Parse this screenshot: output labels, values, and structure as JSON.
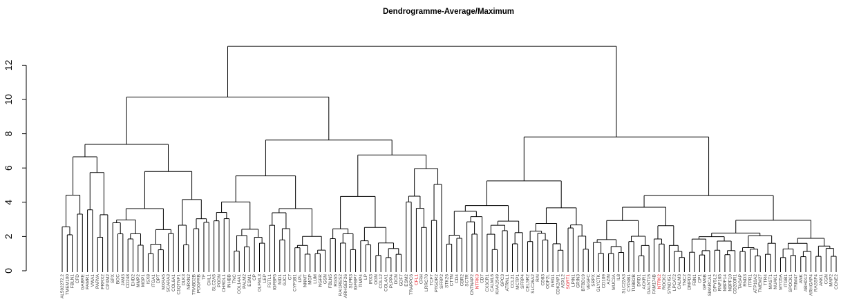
{
  "chart_data": {
    "type": "dendrogram",
    "title": "Dendrogramme-Average/Maximum",
    "xlabel": "",
    "ylabel": "",
    "ylim": [
      0,
      13.1
    ],
    "yticks": [
      0,
      2,
      4,
      6,
      8,
      10,
      12
    ],
    "grid": false,
    "highlight_color": "#e8202a",
    "label_color": "#444444",
    "root_height": 13.1,
    "leaves": [
      {
        "label": "AL592272.2",
        "highlight": false
      },
      {
        "label": "TMEM100",
        "highlight": false
      },
      {
        "label": "FBLN1",
        "highlight": false
      },
      {
        "label": "CFD",
        "highlight": false
      },
      {
        "label": "GABRE",
        "highlight": false
      },
      {
        "label": "PAMR1",
        "highlight": false
      },
      {
        "label": "VWA1",
        "highlight": false
      },
      {
        "label": "PARVA",
        "highlight": false
      },
      {
        "label": "PRRX2",
        "highlight": false
      },
      {
        "label": "CPXM2",
        "highlight": false
      },
      {
        "label": "SPX",
        "highlight": false
      },
      {
        "label": "BOC",
        "highlight": false
      },
      {
        "label": "JAM3",
        "highlight": false
      },
      {
        "label": "CD248",
        "highlight": false
      },
      {
        "label": "EHD2",
        "highlight": false
      },
      {
        "label": "MMP2",
        "highlight": false
      },
      {
        "label": "MGP1",
        "highlight": false
      },
      {
        "label": "ISX8",
        "highlight": false
      },
      {
        "label": "ITGA1",
        "highlight": false
      },
      {
        "label": "DPT",
        "highlight": false
      },
      {
        "label": "MXRA5",
        "highlight": false
      },
      {
        "label": "SCARA3",
        "highlight": false
      },
      {
        "label": "COL6A1",
        "highlight": false
      },
      {
        "label": "C1QTNF1",
        "highlight": false
      },
      {
        "label": "DLK3",
        "highlight": false
      },
      {
        "label": "NRXN2",
        "highlight": false
      },
      {
        "label": "TRABD2B",
        "highlight": false
      },
      {
        "label": "PDGFRB",
        "highlight": false
      },
      {
        "label": "TF",
        "highlight": false
      },
      {
        "label": "CHL1",
        "highlight": false
      },
      {
        "label": "SLC2A5",
        "highlight": false
      },
      {
        "label": "PODN",
        "highlight": false
      },
      {
        "label": "CHRDL1",
        "highlight": false
      },
      {
        "label": "INHBB",
        "highlight": false
      },
      {
        "label": "TNC",
        "highlight": false
      },
      {
        "label": "COL14A1",
        "highlight": false
      },
      {
        "label": "PALM2",
        "highlight": false
      },
      {
        "label": "ESM1",
        "highlight": false
      },
      {
        "label": "CP",
        "highlight": false
      },
      {
        "label": "OLFML3",
        "highlight": false
      },
      {
        "label": "LEP",
        "highlight": false
      },
      {
        "label": "FSTL1",
        "highlight": false
      },
      {
        "label": "IGFBP5",
        "highlight": false
      },
      {
        "label": "NID1",
        "highlight": false
      },
      {
        "label": "GJC1",
        "highlight": false
      },
      {
        "label": "C7",
        "highlight": false
      },
      {
        "label": "CYP1B1",
        "highlight": false
      },
      {
        "label": "LPL",
        "highlight": false
      },
      {
        "label": "NNMT",
        "highlight": false
      },
      {
        "label": "MGP",
        "highlight": false
      },
      {
        "label": "LUM",
        "highlight": false
      },
      {
        "label": "NGFR",
        "highlight": false
      },
      {
        "label": "GSN",
        "highlight": false
      },
      {
        "label": "FBLN5",
        "highlight": false
      },
      {
        "label": "RGS5",
        "highlight": false
      },
      {
        "label": "RAI1RES2",
        "highlight": false
      },
      {
        "label": "ARHGEF26",
        "highlight": false
      },
      {
        "label": "S1PR3",
        "highlight": false
      },
      {
        "label": "IGFBP7",
        "highlight": false
      },
      {
        "label": "TIMP4",
        "highlight": false
      },
      {
        "label": "LP",
        "highlight": false
      },
      {
        "label": "IRX3",
        "highlight": false
      },
      {
        "label": "OGN",
        "highlight": false
      },
      {
        "label": "COL12",
        "highlight": false
      },
      {
        "label": "COL4A1",
        "highlight": false
      },
      {
        "label": "PLPP4",
        "highlight": false
      },
      {
        "label": "DCN",
        "highlight": false
      },
      {
        "label": "GDF7",
        "highlight": false
      },
      {
        "label": "ESM2",
        "highlight": false
      },
      {
        "label": "TRAPPC6",
        "highlight": false
      },
      {
        "label": "CFL1",
        "highlight": true
      },
      {
        "label": "CRH",
        "highlight": false
      },
      {
        "label": "LRRC70",
        "highlight": false
      },
      {
        "label": "TCF7",
        "highlight": false
      },
      {
        "label": "PTGDR2",
        "highlight": false
      },
      {
        "label": "SFRP2",
        "highlight": false
      },
      {
        "label": "STK26",
        "highlight": false
      },
      {
        "label": "CTTN",
        "highlight": false
      },
      {
        "label": "CD4",
        "highlight": false
      },
      {
        "label": "CBR2",
        "highlight": false
      },
      {
        "label": "SCTR",
        "highlight": false
      },
      {
        "label": "CNTNAP2",
        "highlight": false
      },
      {
        "label": "NTRK3",
        "highlight": true
      },
      {
        "label": "CD7",
        "highlight": false
      },
      {
        "label": "CX3CR1",
        "highlight": false
      },
      {
        "label": "CALML6",
        "highlight": false
      },
      {
        "label": "KIAA1549",
        "highlight": false
      },
      {
        "label": "GPC3",
        "highlight": false
      },
      {
        "label": "ATRNL1",
        "highlight": false
      },
      {
        "label": "CCL21",
        "highlight": false
      },
      {
        "label": "MCTP1",
        "highlight": false
      },
      {
        "label": "SFRP4",
        "highlight": false
      },
      {
        "label": "CELSR2",
        "highlight": false
      },
      {
        "label": "SLC26A2",
        "highlight": false
      },
      {
        "label": "RAI",
        "highlight": false
      },
      {
        "label": "CD83",
        "highlight": false
      },
      {
        "label": "ODF2L",
        "highlight": false
      },
      {
        "label": "NRG1",
        "highlight": false
      },
      {
        "label": "CDK2AP1",
        "highlight": false
      },
      {
        "label": "ASXL2",
        "highlight": false
      },
      {
        "label": "SORT1",
        "highlight": true
      },
      {
        "label": "LPIN1",
        "highlight": false
      },
      {
        "label": "GRIN3",
        "highlight": false
      },
      {
        "label": "BTBD19",
        "highlight": false
      },
      {
        "label": "VEGFC",
        "highlight": false
      },
      {
        "label": "SRPX",
        "highlight": false
      },
      {
        "label": "GLYCTK",
        "highlight": false
      },
      {
        "label": "CD109",
        "highlight": false
      },
      {
        "label": "AZIN",
        "highlight": false
      },
      {
        "label": "MUC3A",
        "highlight": false
      },
      {
        "label": "IL8",
        "highlight": false
      },
      {
        "label": "SLC22A3",
        "highlight": false
      },
      {
        "label": "CYP4B1",
        "highlight": false
      },
      {
        "label": "TUBB2B",
        "highlight": false
      },
      {
        "label": "DRD1",
        "highlight": false
      },
      {
        "label": "ACKR1",
        "highlight": false
      },
      {
        "label": "GALNT15",
        "highlight": false
      },
      {
        "label": "FAM174B",
        "highlight": false
      },
      {
        "label": "NTRK2",
        "highlight": true
      },
      {
        "label": "ROCK2",
        "highlight": false
      },
      {
        "label": "SYNDIG1",
        "highlight": false
      },
      {
        "label": "LPCAT2",
        "highlight": false
      },
      {
        "label": "CALM3",
        "highlight": false
      },
      {
        "label": "TNC2",
        "highlight": false
      },
      {
        "label": "DMPD3",
        "highlight": false
      },
      {
        "label": "FBN1",
        "highlight": false
      },
      {
        "label": "CP1",
        "highlight": false
      },
      {
        "label": "GPM6B",
        "highlight": false
      },
      {
        "label": "SMARCA1",
        "highlight": false
      },
      {
        "label": "DPYSL2",
        "highlight": false
      },
      {
        "label": "RNF165",
        "highlight": false
      },
      {
        "label": "NBPF14",
        "highlight": false
      },
      {
        "label": "NBPF10",
        "highlight": false
      },
      {
        "label": "CD200R1",
        "highlight": false
      },
      {
        "label": "TAGAP",
        "highlight": false
      },
      {
        "label": "RND3",
        "highlight": false
      },
      {
        "label": "ITPR1",
        "highlight": false
      },
      {
        "label": "ATP10A2",
        "highlight": false
      },
      {
        "label": "TMEM27",
        "highlight": false
      },
      {
        "label": "TTR4",
        "highlight": false
      },
      {
        "label": "MAST1",
        "highlight": false
      },
      {
        "label": "NUAK1",
        "highlight": false
      },
      {
        "label": "MYO5A",
        "highlight": false
      },
      {
        "label": "ITGB1",
        "highlight": false
      },
      {
        "label": "SPOCK1",
        "highlight": false
      },
      {
        "label": "TRIM47",
        "highlight": false
      },
      {
        "label": "ANK",
        "highlight": false
      },
      {
        "label": "ABHD12",
        "highlight": false
      },
      {
        "label": "ARHGAP4",
        "highlight": false
      },
      {
        "label": "RASSF4",
        "highlight": false
      },
      {
        "label": "ANK1",
        "highlight": false
      },
      {
        "label": "CGN",
        "highlight": false
      },
      {
        "label": "MAP2",
        "highlight": false
      },
      {
        "label": "CCNE2",
        "highlight": false
      }
    ]
  }
}
